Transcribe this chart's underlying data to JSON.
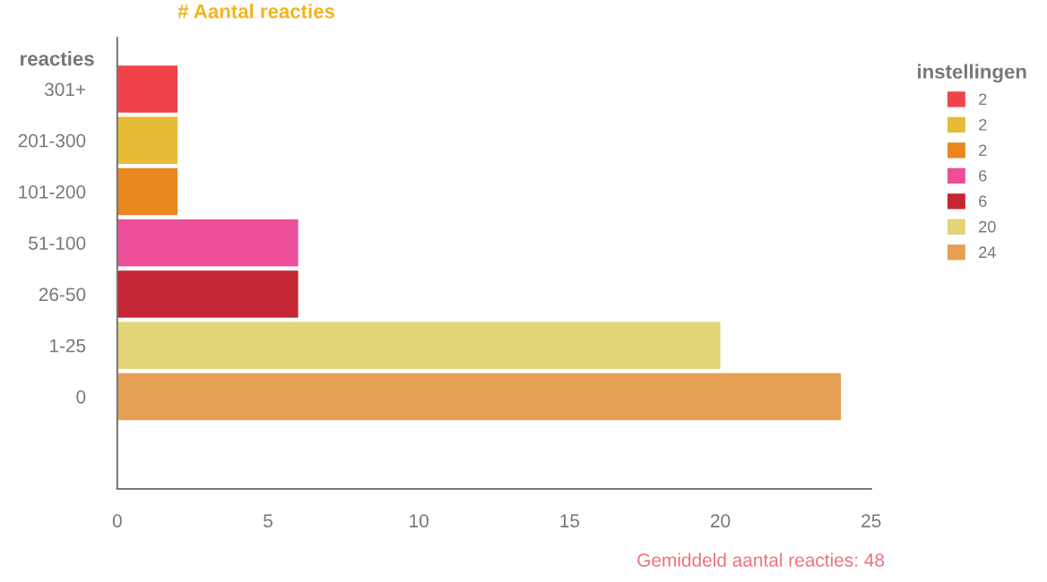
{
  "chart_data": {
    "type": "bar",
    "orientation": "horizontal",
    "title": "# Aantal reacties",
    "ylabel": "reacties",
    "legend_title": "instellingen",
    "categories": [
      "301+",
      "201-300",
      "101-200",
      "51-100",
      "26-50",
      "1-25",
      "0"
    ],
    "series": [
      {
        "name": "2",
        "color": "#f0444a",
        "values": [
          2,
          null,
          null,
          null,
          null,
          null,
          null
        ]
      },
      {
        "name": "2",
        "color": "#e6bb35",
        "values": [
          null,
          2,
          null,
          null,
          null,
          null,
          null
        ]
      },
      {
        "name": "2",
        "color": "#e8861f",
        "values": [
          null,
          null,
          2,
          null,
          null,
          null,
          null
        ]
      },
      {
        "name": "6",
        "color": "#ec4f98",
        "values": [
          null,
          null,
          null,
          6,
          null,
          null,
          null
        ]
      },
      {
        "name": "6",
        "color": "#c62533",
        "values": [
          null,
          null,
          null,
          null,
          6,
          null,
          null
        ]
      },
      {
        "name": "20",
        "color": "#e2d477",
        "values": [
          null,
          null,
          null,
          null,
          null,
          20,
          null
        ]
      },
      {
        "name": "24",
        "color": "#e6a053",
        "values": [
          null,
          null,
          null,
          null,
          null,
          null,
          24
        ]
      }
    ],
    "xlim": [
      0,
      25
    ],
    "xticks": [
      0,
      5,
      10,
      15,
      20,
      25
    ],
    "grid": false,
    "legend": "right",
    "annotations": [
      "Gemiddeld aantal reacties: 48"
    ]
  }
}
